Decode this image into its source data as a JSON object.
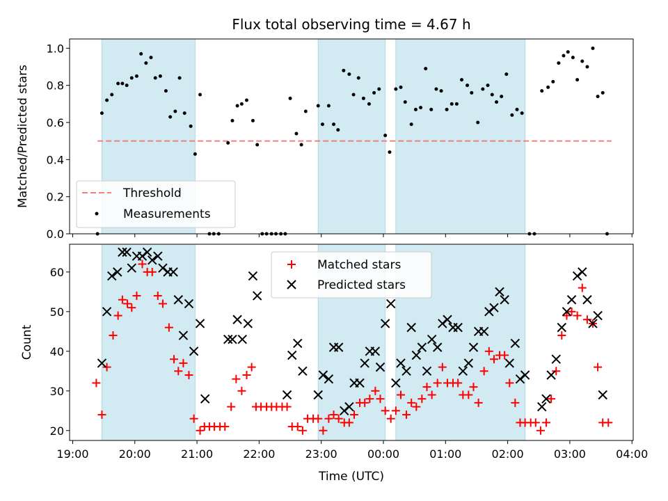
{
  "figure": {
    "title": "Flux total observing time = 4.67 h",
    "xlabel": "Time (UTC)",
    "x_tick_labels": [
      "19:00",
      "20:00",
      "21:00",
      "22:00",
      "23:00",
      "00:00",
      "01:00",
      "02:00",
      "03:00",
      "04:00"
    ]
  },
  "colors": {
    "shade": "#add8e6",
    "threshold": "#f08080",
    "measurements": "#000000",
    "matched": "#ff0000",
    "predicted": "#000000"
  },
  "chart_data": [
    {
      "type": "scatter",
      "panel": "top",
      "ylabel": "Matched/Predicted stars",
      "xlim": [
        18.95,
        28.02
      ],
      "ylim": [
        0,
        1.05
      ],
      "y_ticks": [
        0.0,
        0.2,
        0.4,
        0.6,
        0.8,
        1.0
      ],
      "y_tick_labels": [
        "0.0",
        "0.2",
        "0.4",
        "0.6",
        "0.8",
        "1.0"
      ],
      "legend": {
        "position": "lower-left",
        "threshold_label": "Threshold",
        "measurements_label": "Measurements"
      },
      "shaded_spans": [
        [
          19.47,
          20.97
        ],
        [
          22.95,
          24.03
        ],
        [
          24.2,
          26.28
        ]
      ],
      "threshold": {
        "y": 0.5,
        "x_range": [
          19.4,
          27.67
        ]
      },
      "measurements": [
        [
          19.4,
          0.0
        ],
        [
          19.47,
          0.65
        ],
        [
          19.55,
          0.72
        ],
        [
          19.63,
          0.75
        ],
        [
          19.73,
          0.81
        ],
        [
          19.8,
          0.81
        ],
        [
          19.87,
          0.8
        ],
        [
          19.95,
          0.84
        ],
        [
          20.03,
          0.85
        ],
        [
          20.1,
          0.97
        ],
        [
          20.18,
          0.92
        ],
        [
          20.26,
          0.95
        ],
        [
          20.33,
          0.84
        ],
        [
          20.41,
          0.85
        ],
        [
          20.5,
          0.77
        ],
        [
          20.57,
          0.63
        ],
        [
          20.65,
          0.66
        ],
        [
          20.72,
          0.84
        ],
        [
          20.8,
          0.65
        ],
        [
          20.9,
          0.58
        ],
        [
          20.97,
          0.43
        ],
        [
          21.05,
          0.75
        ],
        [
          21.2,
          0.0
        ],
        [
          21.27,
          0.0
        ],
        [
          21.35,
          0.0
        ],
        [
          21.5,
          0.49
        ],
        [
          21.57,
          0.61
        ],
        [
          21.65,
          0.69
        ],
        [
          21.72,
          0.7
        ],
        [
          21.8,
          0.72
        ],
        [
          21.9,
          0.61
        ],
        [
          21.97,
          0.48
        ],
        [
          22.05,
          0.0
        ],
        [
          22.12,
          0.0
        ],
        [
          22.2,
          0.0
        ],
        [
          22.27,
          0.0
        ],
        [
          22.35,
          0.0
        ],
        [
          22.42,
          0.0
        ],
        [
          22.5,
          0.73
        ],
        [
          22.6,
          0.54
        ],
        [
          22.68,
          0.48
        ],
        [
          22.75,
          0.66
        ],
        [
          22.95,
          0.69
        ],
        [
          23.02,
          0.59
        ],
        [
          23.12,
          0.69
        ],
        [
          23.2,
          0.59
        ],
        [
          23.27,
          0.56
        ],
        [
          23.36,
          0.88
        ],
        [
          23.45,
          0.86
        ],
        [
          23.52,
          0.75
        ],
        [
          23.6,
          0.84
        ],
        [
          23.68,
          0.73
        ],
        [
          23.77,
          0.7
        ],
        [
          23.85,
          0.76
        ],
        [
          23.93,
          0.78
        ],
        [
          24.03,
          0.53
        ],
        [
          24.1,
          0.44
        ],
        [
          24.2,
          0.78
        ],
        [
          24.28,
          0.79
        ],
        [
          24.35,
          0.71
        ],
        [
          24.45,
          0.59
        ],
        [
          24.52,
          0.67
        ],
        [
          24.6,
          0.68
        ],
        [
          24.68,
          0.89
        ],
        [
          24.77,
          0.67
        ],
        [
          24.85,
          0.78
        ],
        [
          24.93,
          0.77
        ],
        [
          25.02,
          0.67
        ],
        [
          25.1,
          0.7
        ],
        [
          25.18,
          0.7
        ],
        [
          25.26,
          0.83
        ],
        [
          25.35,
          0.8
        ],
        [
          25.42,
          0.76
        ],
        [
          25.52,
          0.6
        ],
        [
          25.6,
          0.78
        ],
        [
          25.68,
          0.8
        ],
        [
          25.75,
          0.75
        ],
        [
          25.82,
          0.71
        ],
        [
          25.9,
          0.74
        ],
        [
          25.98,
          0.86
        ],
        [
          26.07,
          0.64
        ],
        [
          26.15,
          0.67
        ],
        [
          26.23,
          0.65
        ],
        [
          26.35,
          0.0
        ],
        [
          26.43,
          0.0
        ],
        [
          26.55,
          0.77
        ],
        [
          26.65,
          0.79
        ],
        [
          26.73,
          0.82
        ],
        [
          26.82,
          0.92
        ],
        [
          26.9,
          0.96
        ],
        [
          26.97,
          0.98
        ],
        [
          27.05,
          0.95
        ],
        [
          27.12,
          0.83
        ],
        [
          27.2,
          0.93
        ],
        [
          27.28,
          0.9
        ],
        [
          27.37,
          1.0
        ],
        [
          27.45,
          0.74
        ],
        [
          27.53,
          0.76
        ],
        [
          27.6,
          0.0
        ]
      ]
    },
    {
      "type": "scatter",
      "panel": "bottom",
      "ylabel": "Count",
      "xlim": [
        18.95,
        28.02
      ],
      "ylim": [
        17.5,
        67
      ],
      "y_ticks": [
        20,
        30,
        40,
        50,
        60
      ],
      "y_tick_labels": [
        "20",
        "30",
        "40",
        "50",
        "60"
      ],
      "legend": {
        "position": "upper-center",
        "matched_label": "Matched stars",
        "predicted_label": "Predicted stars"
      },
      "shaded_spans": [
        [
          19.47,
          20.97
        ],
        [
          22.95,
          24.03
        ],
        [
          24.2,
          26.28
        ]
      ],
      "series": [
        {
          "name": "Matched stars",
          "marker": "plus",
          "points": [
            [
              19.38,
              32
            ],
            [
              19.47,
              24
            ],
            [
              19.55,
              36
            ],
            [
              19.65,
              44
            ],
            [
              19.73,
              49
            ],
            [
              19.8,
              53
            ],
            [
              19.88,
              52
            ],
            [
              19.95,
              51
            ],
            [
              20.03,
              54
            ],
            [
              20.12,
              62
            ],
            [
              20.2,
              60
            ],
            [
              20.28,
              60
            ],
            [
              20.37,
              54
            ],
            [
              20.45,
              52
            ],
            [
              20.55,
              46
            ],
            [
              20.63,
              38
            ],
            [
              20.7,
              35
            ],
            [
              20.78,
              37
            ],
            [
              20.87,
              34
            ],
            [
              20.95,
              23
            ],
            [
              21.05,
              20
            ],
            [
              21.12,
              21
            ],
            [
              21.2,
              21
            ],
            [
              21.28,
              21
            ],
            [
              21.37,
              21
            ],
            [
              21.45,
              21
            ],
            [
              21.55,
              26
            ],
            [
              21.63,
              33
            ],
            [
              21.72,
              30
            ],
            [
              21.8,
              34
            ],
            [
              21.88,
              36
            ],
            [
              21.95,
              26
            ],
            [
              22.03,
              26
            ],
            [
              22.12,
              26
            ],
            [
              22.2,
              26
            ],
            [
              22.28,
              26
            ],
            [
              22.37,
              26
            ],
            [
              22.45,
              26
            ],
            [
              22.53,
              21
            ],
            [
              22.62,
              21
            ],
            [
              22.7,
              20
            ],
            [
              22.78,
              23
            ],
            [
              22.87,
              23
            ],
            [
              22.95,
              23
            ],
            [
              23.03,
              20
            ],
            [
              23.12,
              23
            ],
            [
              23.2,
              24
            ],
            [
              23.28,
              23
            ],
            [
              23.37,
              22
            ],
            [
              23.45,
              22
            ],
            [
              23.53,
              24
            ],
            [
              23.62,
              27
            ],
            [
              23.7,
              27
            ],
            [
              23.78,
              28
            ],
            [
              23.87,
              30
            ],
            [
              23.95,
              28
            ],
            [
              24.03,
              25
            ],
            [
              24.12,
              23
            ],
            [
              24.2,
              25
            ],
            [
              24.28,
              29
            ],
            [
              24.37,
              24
            ],
            [
              24.45,
              27
            ],
            [
              24.53,
              26
            ],
            [
              24.62,
              28
            ],
            [
              24.7,
              31
            ],
            [
              24.78,
              29
            ],
            [
              24.87,
              32
            ],
            [
              24.95,
              36
            ],
            [
              25.03,
              32
            ],
            [
              25.12,
              32
            ],
            [
              25.2,
              32
            ],
            [
              25.28,
              29
            ],
            [
              25.37,
              29
            ],
            [
              25.45,
              31
            ],
            [
              25.53,
              27
            ],
            [
              25.62,
              35
            ],
            [
              25.7,
              40
            ],
            [
              25.78,
              38
            ],
            [
              25.87,
              39
            ],
            [
              25.95,
              39
            ],
            [
              26.03,
              32
            ],
            [
              26.12,
              27
            ],
            [
              26.2,
              22
            ],
            [
              26.28,
              22
            ],
            [
              26.37,
              22
            ],
            [
              26.45,
              22
            ],
            [
              26.53,
              20
            ],
            [
              26.62,
              22
            ],
            [
              26.7,
              28
            ],
            [
              26.78,
              35
            ],
            [
              26.87,
              44
            ],
            [
              26.95,
              49
            ],
            [
              27.03,
              50
            ],
            [
              27.12,
              49
            ],
            [
              27.2,
              56
            ],
            [
              27.28,
              48
            ],
            [
              27.37,
              47
            ],
            [
              27.45,
              36
            ],
            [
              27.53,
              22
            ],
            [
              27.62,
              22
            ]
          ]
        },
        {
          "name": "Predicted stars",
          "marker": "x",
          "points": [
            [
              19.47,
              37
            ],
            [
              19.55,
              50
            ],
            [
              19.63,
              59
            ],
            [
              19.72,
              60
            ],
            [
              19.8,
              65
            ],
            [
              19.87,
              65
            ],
            [
              19.95,
              61
            ],
            [
              20.03,
              64
            ],
            [
              20.12,
              64
            ],
            [
              20.2,
              65
            ],
            [
              20.28,
              63
            ],
            [
              20.37,
              64
            ],
            [
              20.45,
              61
            ],
            [
              20.53,
              60
            ],
            [
              20.62,
              60
            ],
            [
              20.7,
              53
            ],
            [
              20.78,
              44
            ],
            [
              20.87,
              52
            ],
            [
              20.95,
              40
            ],
            [
              21.05,
              47
            ],
            [
              21.13,
              28
            ],
            [
              21.5,
              43
            ],
            [
              21.57,
              43
            ],
            [
              21.65,
              48
            ],
            [
              21.73,
              43
            ],
            [
              21.82,
              47
            ],
            [
              21.9,
              59
            ],
            [
              21.97,
              54
            ],
            [
              22.45,
              29
            ],
            [
              22.53,
              39
            ],
            [
              22.62,
              42
            ],
            [
              22.7,
              35
            ],
            [
              22.95,
              29
            ],
            [
              23.03,
              34
            ],
            [
              23.12,
              33
            ],
            [
              23.2,
              41
            ],
            [
              23.28,
              41
            ],
            [
              23.37,
              25
            ],
            [
              23.45,
              26
            ],
            [
              23.53,
              32
            ],
            [
              23.62,
              32
            ],
            [
              23.7,
              37
            ],
            [
              23.78,
              40
            ],
            [
              23.87,
              40
            ],
            [
              23.95,
              36
            ],
            [
              24.03,
              47
            ],
            [
              24.12,
              52
            ],
            [
              24.2,
              32
            ],
            [
              24.28,
              37
            ],
            [
              24.37,
              35
            ],
            [
              24.45,
              46
            ],
            [
              24.53,
              39
            ],
            [
              24.62,
              41
            ],
            [
              24.7,
              35
            ],
            [
              24.78,
              43
            ],
            [
              24.87,
              41
            ],
            [
              24.95,
              47
            ],
            [
              25.03,
              48
            ],
            [
              25.12,
              46
            ],
            [
              25.2,
              46
            ],
            [
              25.28,
              35
            ],
            [
              25.37,
              37
            ],
            [
              25.45,
              41
            ],
            [
              25.53,
              45
            ],
            [
              25.62,
              45
            ],
            [
              25.7,
              50
            ],
            [
              25.78,
              51
            ],
            [
              25.87,
              55
            ],
            [
              25.95,
              53
            ],
            [
              26.03,
              37
            ],
            [
              26.12,
              42
            ],
            [
              26.2,
              33
            ],
            [
              26.28,
              34
            ],
            [
              26.55,
              26
            ],
            [
              26.62,
              28
            ],
            [
              26.7,
              34
            ],
            [
              26.78,
              38
            ],
            [
              26.87,
              46
            ],
            [
              26.95,
              50
            ],
            [
              27.03,
              53
            ],
            [
              27.12,
              59
            ],
            [
              27.2,
              60
            ],
            [
              27.28,
              53
            ],
            [
              27.37,
              47
            ],
            [
              27.45,
              49
            ],
            [
              27.53,
              29
            ]
          ]
        }
      ]
    }
  ]
}
